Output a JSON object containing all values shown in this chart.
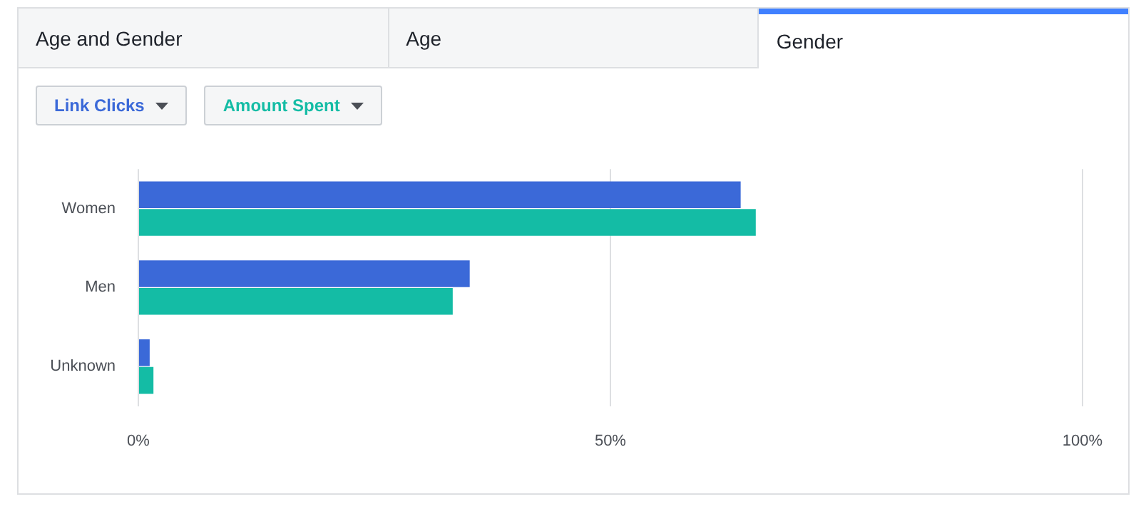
{
  "chart_data": {
    "type": "bar",
    "orientation": "horizontal",
    "categories": [
      "Women",
      "Men",
      "Unknown"
    ],
    "series": [
      {
        "name": "Link Clicks",
        "color": "#3b69d8",
        "values": [
          63.8,
          35.1,
          1.2
        ]
      },
      {
        "name": "Amount Spent",
        "color": "#14bca5",
        "values": [
          65.4,
          33.3,
          1.6
        ]
      }
    ],
    "xlim": [
      0,
      100
    ],
    "xticks": [
      {
        "value": 0,
        "label": "0%"
      },
      {
        "value": 50,
        "label": "50%"
      },
      {
        "value": 100,
        "label": "100%"
      }
    ],
    "grid": "x",
    "legend": "top left",
    "annotations": [
      "Age and Gender",
      "Age",
      "Gender"
    ]
  }
}
